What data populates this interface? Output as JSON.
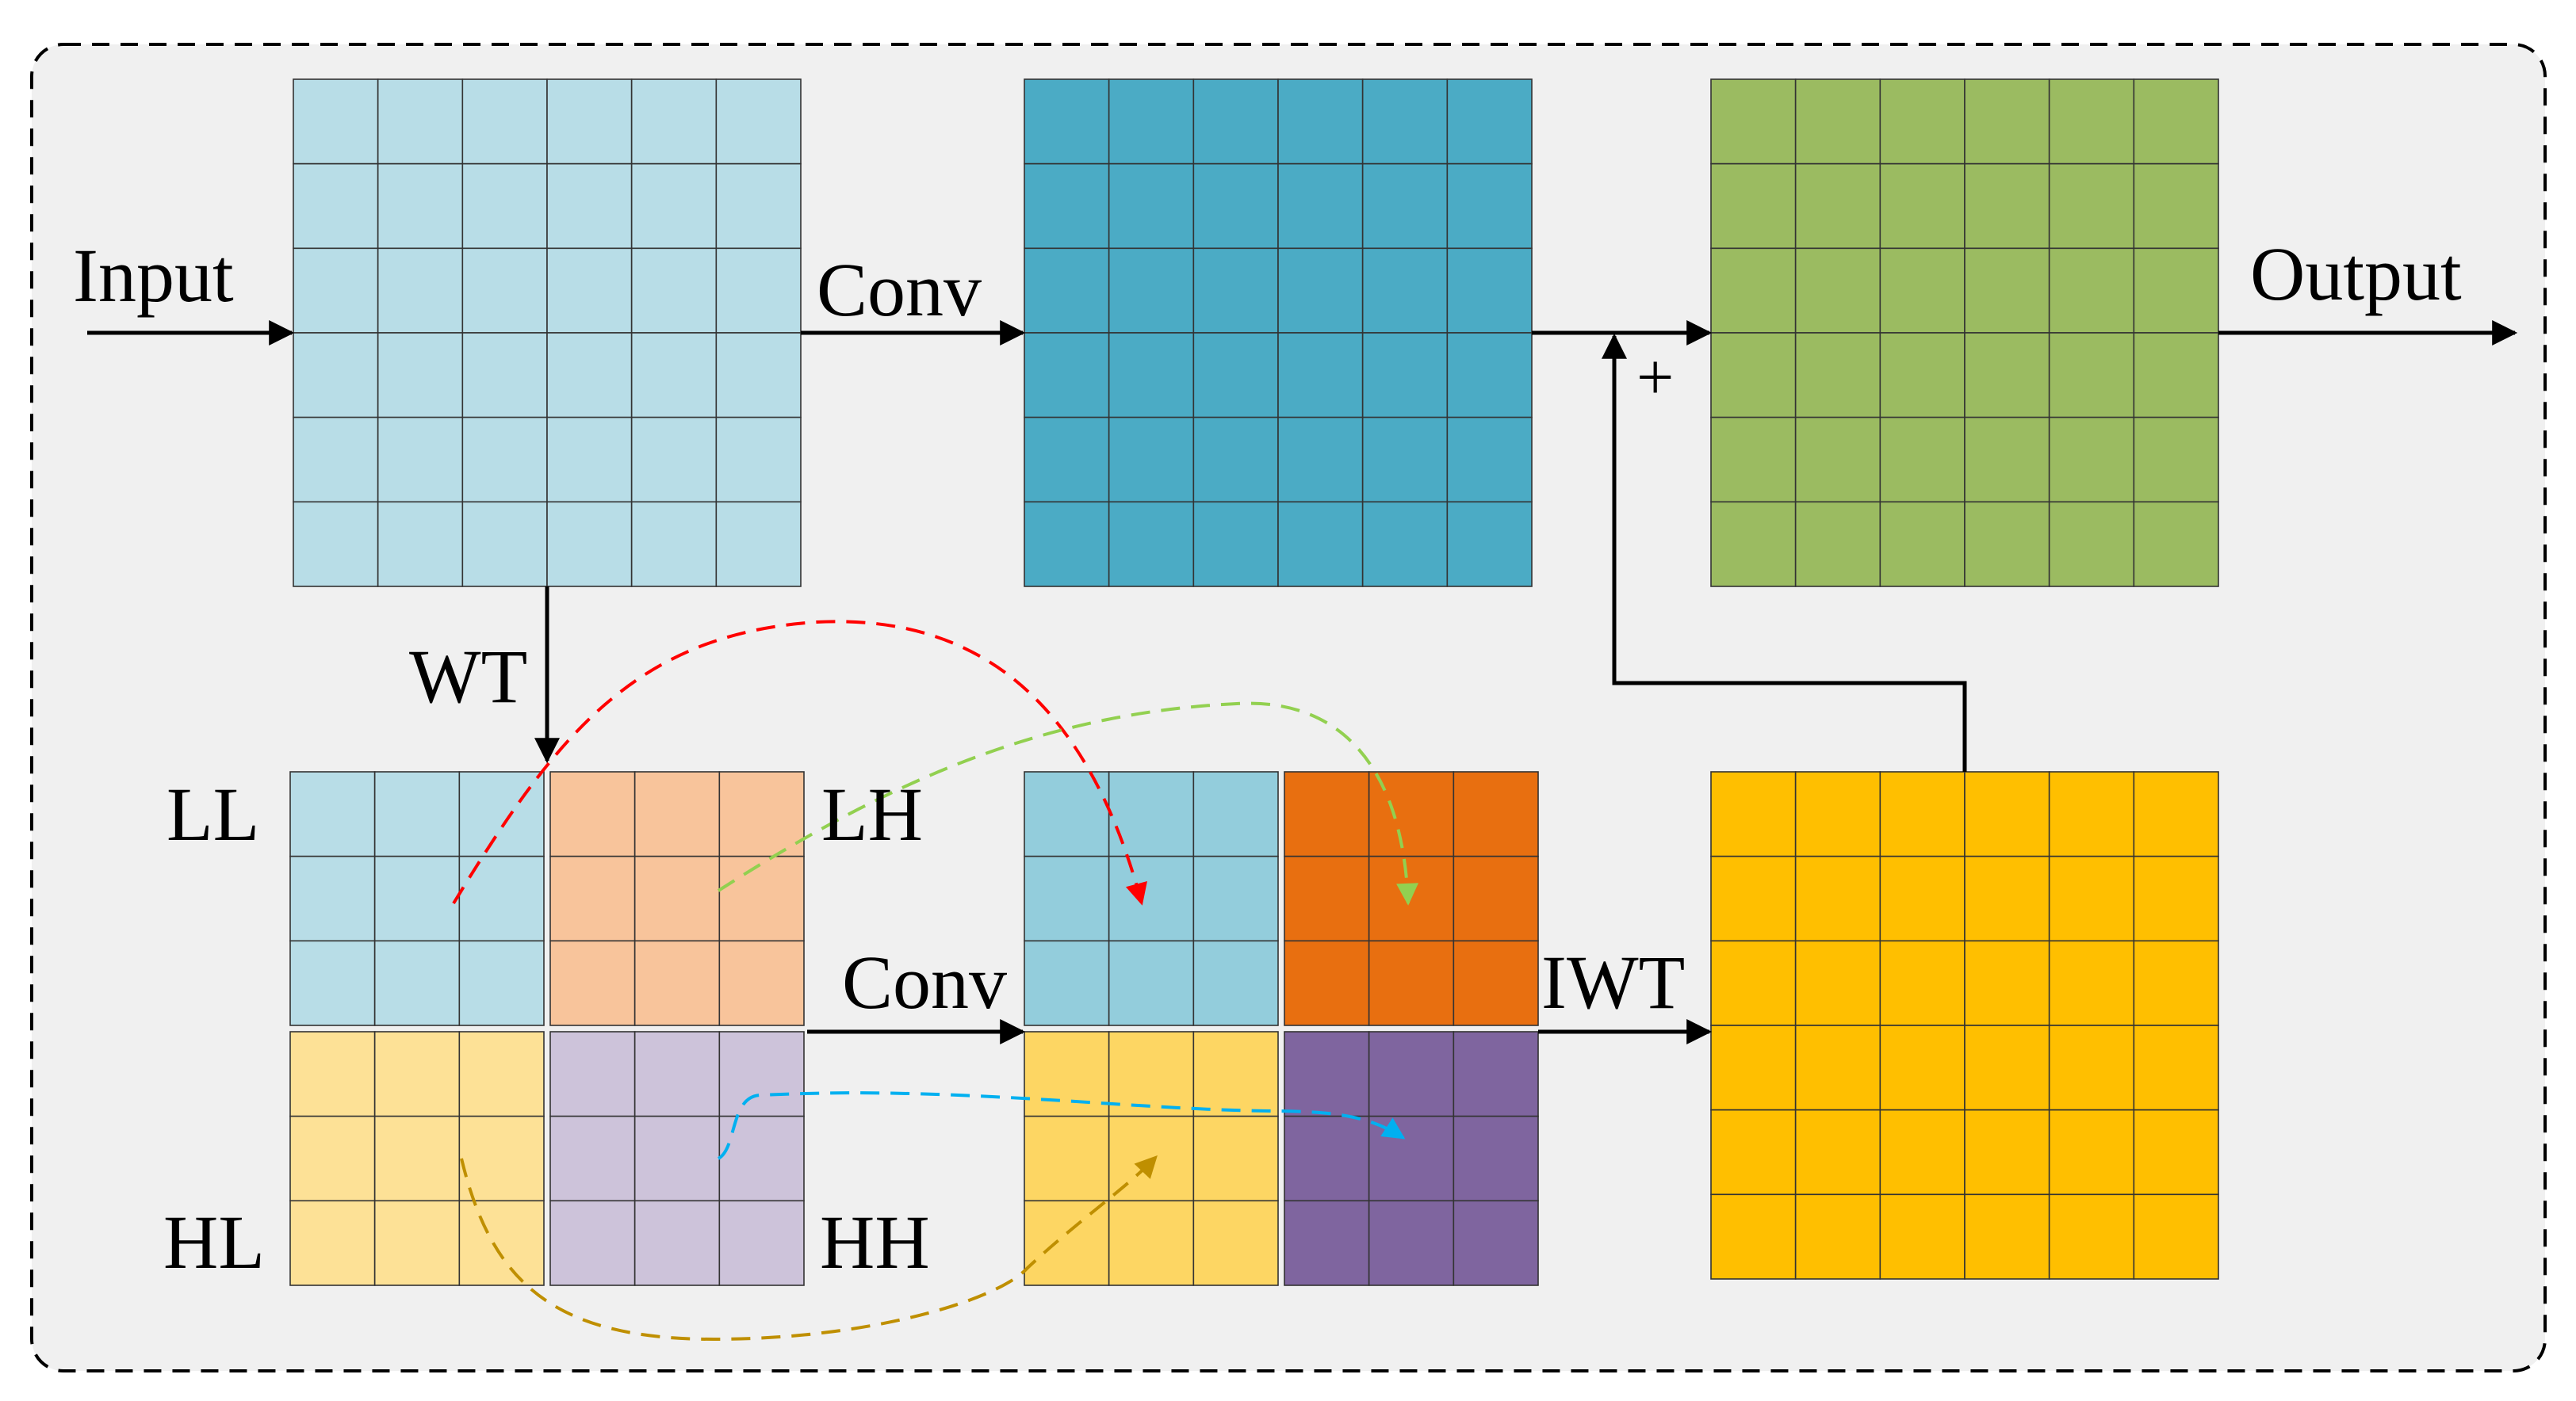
{
  "labels": {
    "input": "Input",
    "conv_top": "Conv",
    "output": "Output",
    "plus": "+",
    "wt": "WT",
    "ll": "LL",
    "lh": "LH",
    "hl": "HL",
    "hh": "HH",
    "conv_bottom": "Conv",
    "iwt": "IWT"
  },
  "colors": {
    "panel_bg": "#f0f0f0",
    "input_grid": "#b8dde7",
    "conv_grid": "#4babc5",
    "output_grid": "#9bbb61",
    "ll": "#b8dde7",
    "lh": "#f8c49b",
    "hl": "#fde196",
    "hh": "#cdc3da",
    "ll_conv": "#93cddc",
    "lh_conv": "#e86f10",
    "hl_conv": "#fdd663",
    "hh_conv": "#7f659f",
    "iwt_grid": "#ffbf00",
    "red_path": "#ff0000",
    "green_path": "#92d050",
    "blue_path": "#00b0f0",
    "gold_path": "#bf8f00"
  },
  "grids": {
    "main_cells": 6,
    "subband_cells": 3
  }
}
